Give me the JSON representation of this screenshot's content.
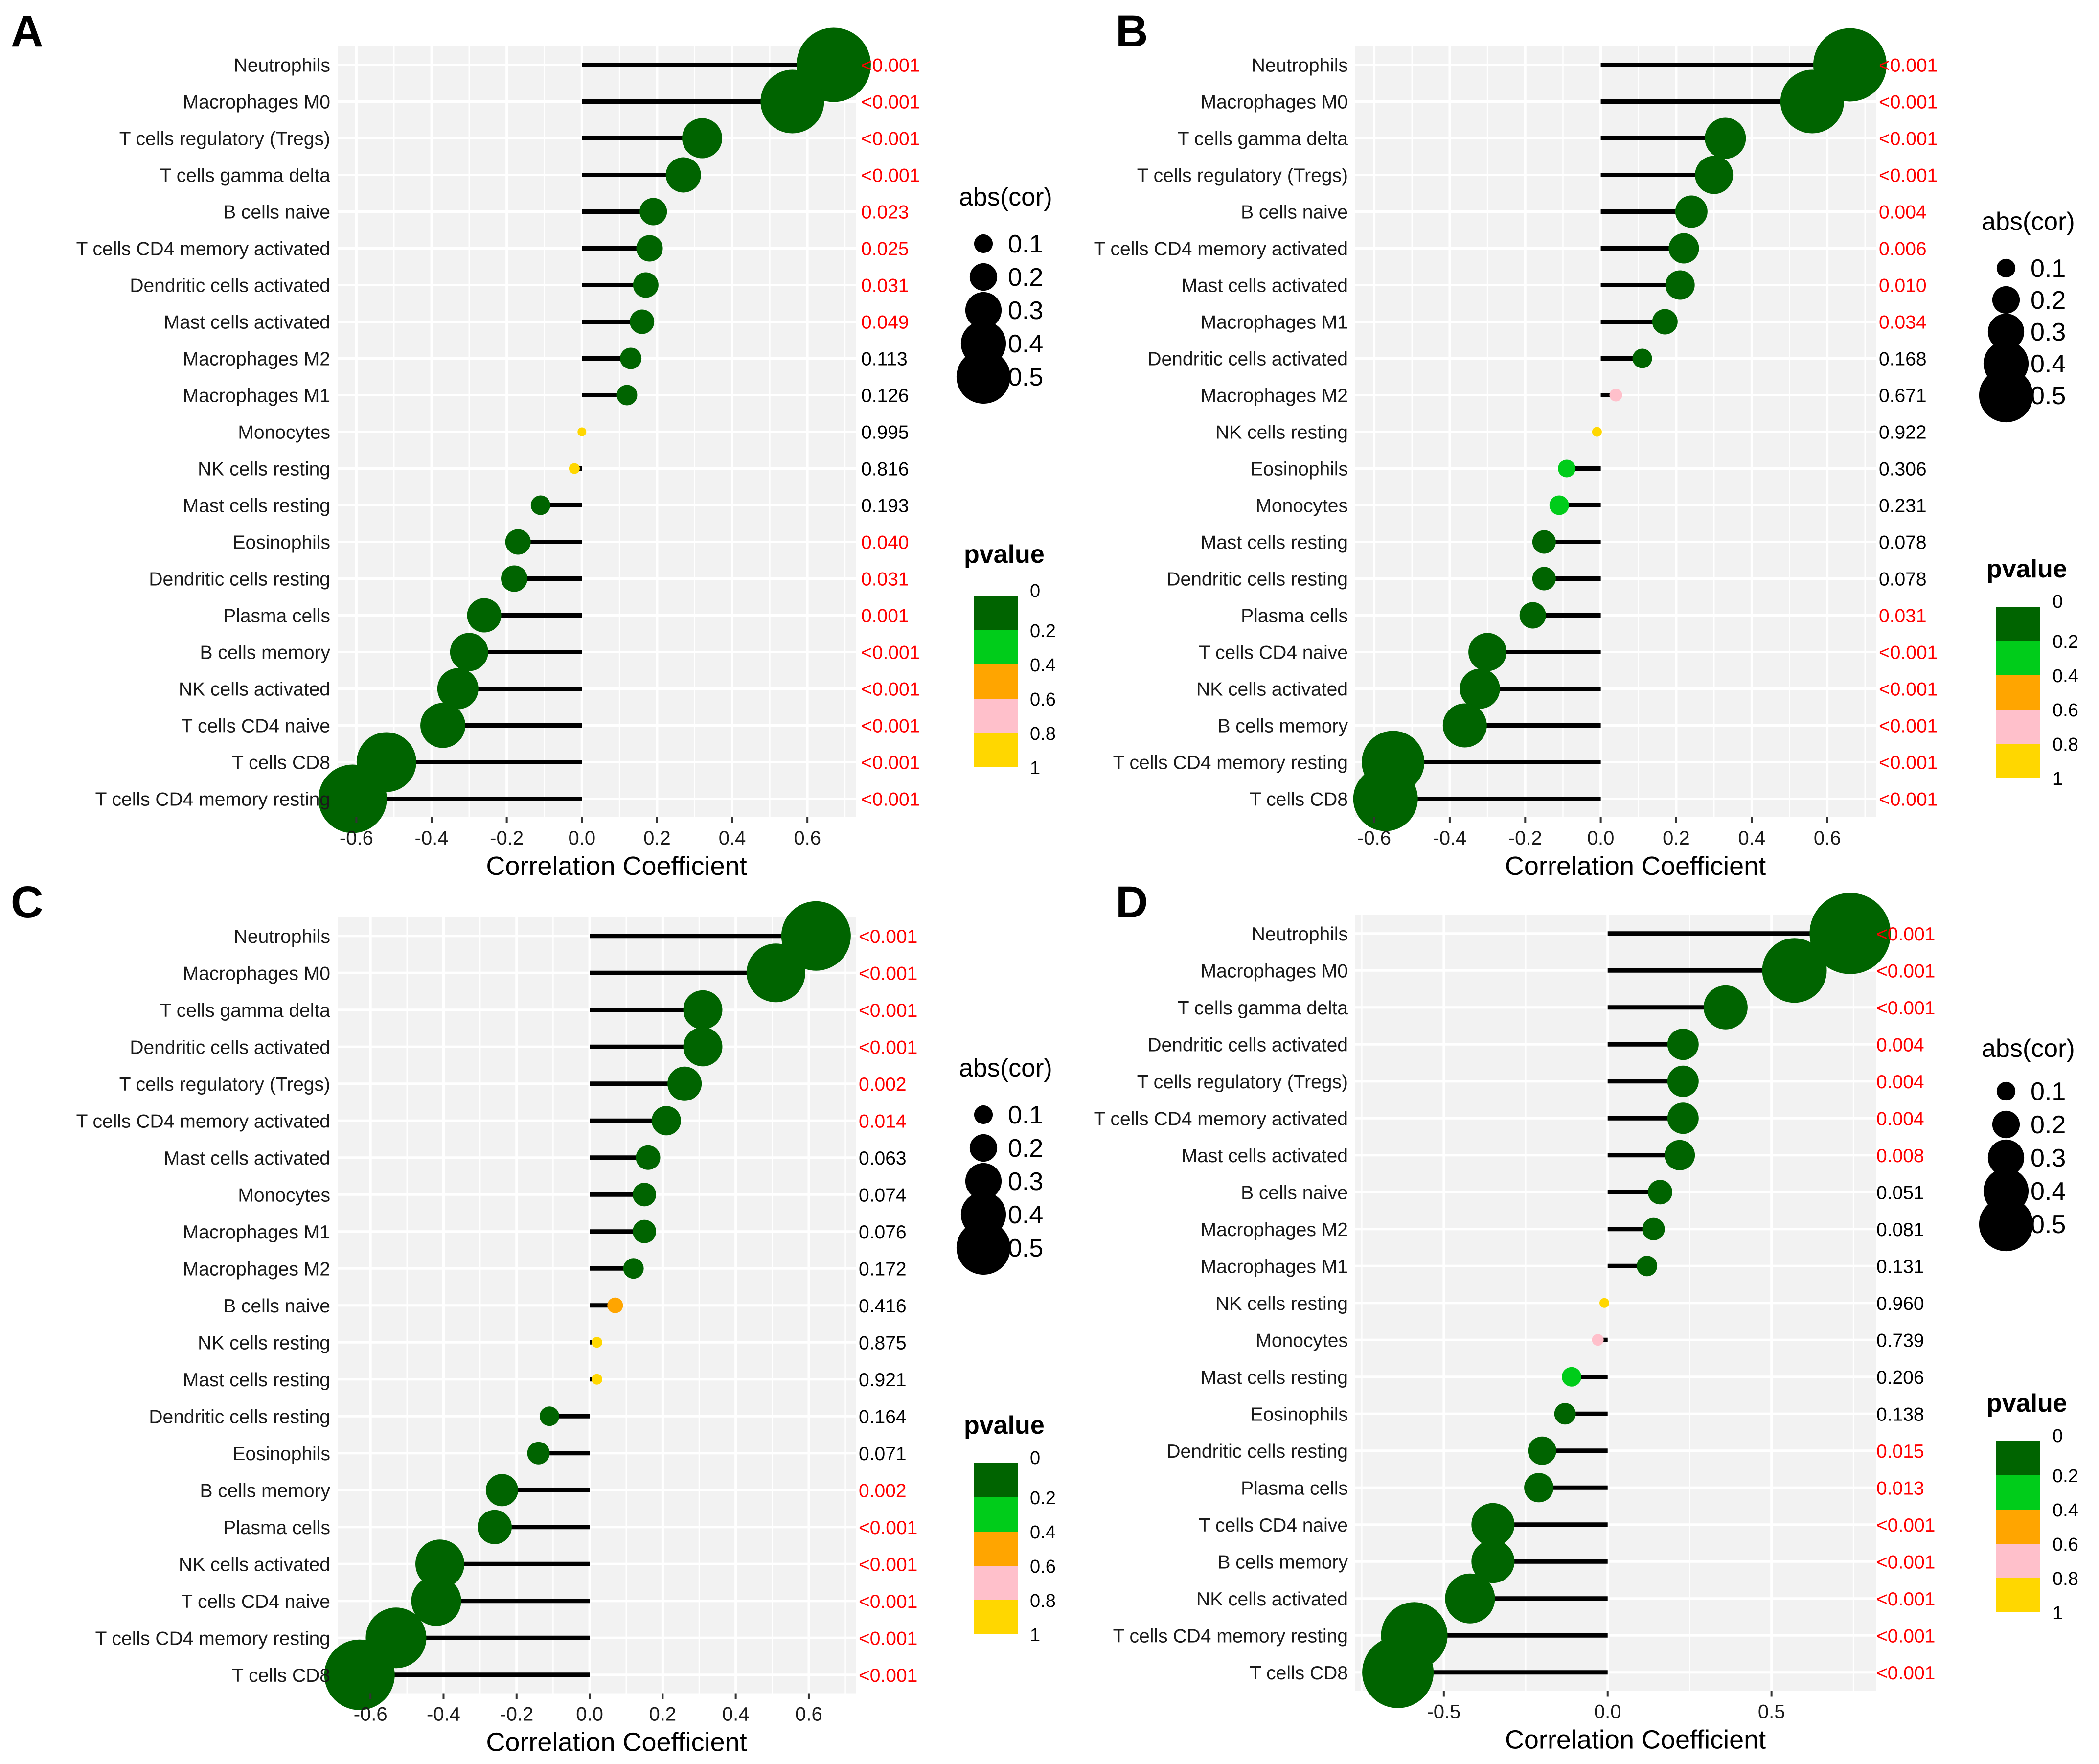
{
  "figure": {
    "title": ""
  },
  "colors": {
    "p_0": "#006400",
    "p_0_2": "#00CC1A",
    "p_0_4": "#FFA500",
    "p_0_6": "#FFC0CB",
    "p_0_8": "#FFD700",
    "sig_text": "#FF0000",
    "nonsig_text": "#000000",
    "panel_bg": "#F2F2F2",
    "grid": "#FFFFFF",
    "stem": "#000000"
  },
  "chart_data": [
    {
      "panel": "A",
      "type": "lollipop",
      "xlabel": "Correlation Coefficient",
      "ylabel": "",
      "xlim": [
        -0.65,
        0.73
      ],
      "xticks": [
        -0.6,
        -0.4,
        -0.2,
        0.0,
        0.2,
        0.4,
        0.6
      ],
      "xtick_labels": [
        "-0.6",
        "-0.4",
        "-0.2",
        "0.0",
        "0.2",
        "0.4",
        "0.6"
      ],
      "size_legend": {
        "title": "abs(cor)",
        "values": [
          "0.1",
          "0.2",
          "0.3",
          "0.4",
          "0.5"
        ]
      },
      "color_legend": {
        "title": "pvalue",
        "labels": [
          "0",
          "0.2",
          "0.4",
          "0.6",
          "0.8",
          "1"
        ]
      },
      "rows": [
        {
          "label": "Neutrophils",
          "cor": 0.67,
          "pval": 0.0005,
          "ptext": "<0.001"
        },
        {
          "label": "Macrophages M0",
          "cor": 0.56,
          "pval": 0.0005,
          "ptext": "<0.001"
        },
        {
          "label": "T cells regulatory (Tregs)",
          "cor": 0.32,
          "pval": 0.0005,
          "ptext": "<0.001"
        },
        {
          "label": "T cells gamma delta",
          "cor": 0.27,
          "pval": 0.0005,
          "ptext": "<0.001"
        },
        {
          "label": "B cells naive",
          "cor": 0.19,
          "pval": 0.023,
          "ptext": "0.023"
        },
        {
          "label": "T cells CD4 memory activated",
          "cor": 0.18,
          "pval": 0.025,
          "ptext": "0.025"
        },
        {
          "label": "Dendritic cells activated",
          "cor": 0.17,
          "pval": 0.031,
          "ptext": "0.031"
        },
        {
          "label": "Mast cells activated",
          "cor": 0.16,
          "pval": 0.049,
          "ptext": "0.049"
        },
        {
          "label": "Macrophages M2",
          "cor": 0.13,
          "pval": 0.113,
          "ptext": "0.113"
        },
        {
          "label": "Macrophages M1",
          "cor": 0.12,
          "pval": 0.126,
          "ptext": "0.126"
        },
        {
          "label": "Monocytes",
          "cor": 0.0,
          "pval": 0.995,
          "ptext": "0.995"
        },
        {
          "label": "NK cells resting",
          "cor": -0.02,
          "pval": 0.816,
          "ptext": "0.816"
        },
        {
          "label": "Mast cells resting",
          "cor": -0.11,
          "pval": 0.193,
          "ptext": "0.193"
        },
        {
          "label": "Eosinophils",
          "cor": -0.17,
          "pval": 0.04,
          "ptext": "0.040"
        },
        {
          "label": "Dendritic cells resting",
          "cor": -0.18,
          "pval": 0.031,
          "ptext": "0.031"
        },
        {
          "label": "Plasma cells",
          "cor": -0.26,
          "pval": 0.001,
          "ptext": "0.001"
        },
        {
          "label": "B cells memory",
          "cor": -0.3,
          "pval": 0.0005,
          "ptext": "<0.001"
        },
        {
          "label": "NK cells activated",
          "cor": -0.33,
          "pval": 0.0005,
          "ptext": "<0.001"
        },
        {
          "label": "T cells CD4 naive",
          "cor": -0.37,
          "pval": 0.0005,
          "ptext": "<0.001"
        },
        {
          "label": "T cells CD8",
          "cor": -0.52,
          "pval": 0.0005,
          "ptext": "<0.001"
        },
        {
          "label": "T cells CD4 memory resting",
          "cor": -0.61,
          "pval": 0.0005,
          "ptext": "<0.001"
        }
      ]
    },
    {
      "panel": "B",
      "type": "lollipop",
      "xlabel": "Correlation Coefficient",
      "ylabel": "",
      "xlim": [
        -0.65,
        0.73
      ],
      "xticks": [
        -0.6,
        -0.4,
        -0.2,
        0.0,
        0.2,
        0.4,
        0.6
      ],
      "xtick_labels": [
        "-0.6",
        "-0.4",
        "-0.2",
        "0.0",
        "0.2",
        "0.4",
        "0.6"
      ],
      "size_legend": {
        "title": "abs(cor)",
        "values": [
          "0.1",
          "0.2",
          "0.3",
          "0.4",
          "0.5"
        ]
      },
      "color_legend": {
        "title": "pvalue",
        "labels": [
          "0",
          "0.2",
          "0.4",
          "0.6",
          "0.8",
          "1"
        ]
      },
      "rows": [
        {
          "label": "Neutrophils",
          "cor": 0.66,
          "pval": 0.0005,
          "ptext": "<0.001"
        },
        {
          "label": "Macrophages M0",
          "cor": 0.56,
          "pval": 0.0005,
          "ptext": "<0.001"
        },
        {
          "label": "T cells gamma delta",
          "cor": 0.33,
          "pval": 0.0005,
          "ptext": "<0.001"
        },
        {
          "label": "T cells regulatory (Tregs)",
          "cor": 0.3,
          "pval": 0.0005,
          "ptext": "<0.001"
        },
        {
          "label": "B cells naive",
          "cor": 0.24,
          "pval": 0.004,
          "ptext": "0.004"
        },
        {
          "label": "T cells CD4 memory activated",
          "cor": 0.22,
          "pval": 0.006,
          "ptext": "0.006"
        },
        {
          "label": "Mast cells activated",
          "cor": 0.21,
          "pval": 0.01,
          "ptext": "0.010"
        },
        {
          "label": "Macrophages M1",
          "cor": 0.17,
          "pval": 0.034,
          "ptext": "0.034"
        },
        {
          "label": "Dendritic cells activated",
          "cor": 0.11,
          "pval": 0.168,
          "ptext": "0.168"
        },
        {
          "label": "Macrophages M2",
          "cor": 0.04,
          "pval": 0.671,
          "ptext": "0.671"
        },
        {
          "label": "NK cells resting",
          "cor": -0.01,
          "pval": 0.922,
          "ptext": "0.922"
        },
        {
          "label": "Eosinophils",
          "cor": -0.09,
          "pval": 0.306,
          "ptext": "0.306"
        },
        {
          "label": "Monocytes",
          "cor": -0.11,
          "pval": 0.231,
          "ptext": "0.231"
        },
        {
          "label": "Mast cells resting",
          "cor": -0.15,
          "pval": 0.078,
          "ptext": "0.078"
        },
        {
          "label": "Dendritic cells resting",
          "cor": -0.15,
          "pval": 0.078,
          "ptext": "0.078"
        },
        {
          "label": "Plasma cells",
          "cor": -0.18,
          "pval": 0.031,
          "ptext": "0.031"
        },
        {
          "label": "T cells CD4 naive",
          "cor": -0.3,
          "pval": 0.0005,
          "ptext": "<0.001"
        },
        {
          "label": "NK cells activated",
          "cor": -0.32,
          "pval": 0.0005,
          "ptext": "<0.001"
        },
        {
          "label": "B cells memory",
          "cor": -0.36,
          "pval": 0.0005,
          "ptext": "<0.001"
        },
        {
          "label": "T cells CD4 memory resting",
          "cor": -0.55,
          "pval": 0.0005,
          "ptext": "<0.001"
        },
        {
          "label": "T cells CD8",
          "cor": -0.57,
          "pval": 0.0005,
          "ptext": "<0.001"
        }
      ]
    },
    {
      "panel": "C",
      "type": "lollipop",
      "xlabel": "Correlation Coefficient",
      "ylabel": "",
      "xlim": [
        -0.69,
        0.73
      ],
      "xticks": [
        -0.6,
        -0.4,
        -0.2,
        0.0,
        0.2,
        0.4,
        0.6
      ],
      "xtick_labels": [
        "-0.6",
        "-0.4",
        "-0.2",
        "0.0",
        "0.2",
        "0.4",
        "0.6"
      ],
      "size_legend": {
        "title": "abs(cor)",
        "values": [
          "0.1",
          "0.2",
          "0.3",
          "0.4",
          "0.5"
        ]
      },
      "color_legend": {
        "title": "pvalue",
        "labels": [
          "0",
          "0.2",
          "0.4",
          "0.6",
          "0.8",
          "1"
        ]
      },
      "rows": [
        {
          "label": "Neutrophils",
          "cor": 0.62,
          "pval": 0.0005,
          "ptext": "<0.001"
        },
        {
          "label": "Macrophages M0",
          "cor": 0.51,
          "pval": 0.0005,
          "ptext": "<0.001"
        },
        {
          "label": "T cells gamma delta",
          "cor": 0.31,
          "pval": 0.0005,
          "ptext": "<0.001"
        },
        {
          "label": "Dendritic cells activated",
          "cor": 0.31,
          "pval": 0.0005,
          "ptext": "<0.001"
        },
        {
          "label": "T cells regulatory (Tregs)",
          "cor": 0.26,
          "pval": 0.002,
          "ptext": "0.002"
        },
        {
          "label": "T cells CD4 memory activated",
          "cor": 0.21,
          "pval": 0.014,
          "ptext": "0.014"
        },
        {
          "label": "Mast cells activated",
          "cor": 0.16,
          "pval": 0.063,
          "ptext": "0.063"
        },
        {
          "label": "Monocytes",
          "cor": 0.15,
          "pval": 0.074,
          "ptext": "0.074"
        },
        {
          "label": "Macrophages M1",
          "cor": 0.15,
          "pval": 0.076,
          "ptext": "0.076"
        },
        {
          "label": "Macrophages M2",
          "cor": 0.12,
          "pval": 0.172,
          "ptext": "0.172"
        },
        {
          "label": "B cells naive",
          "cor": 0.07,
          "pval": 0.416,
          "ptext": "0.416"
        },
        {
          "label": "NK cells resting",
          "cor": 0.02,
          "pval": 0.875,
          "ptext": "0.875"
        },
        {
          "label": "Mast cells resting",
          "cor": 0.02,
          "pval": 0.921,
          "ptext": "0.921"
        },
        {
          "label": "Dendritic cells resting",
          "cor": -0.11,
          "pval": 0.164,
          "ptext": "0.164"
        },
        {
          "label": "Eosinophils",
          "cor": -0.14,
          "pval": 0.071,
          "ptext": "0.071"
        },
        {
          "label": "B cells memory",
          "cor": -0.24,
          "pval": 0.002,
          "ptext": "0.002"
        },
        {
          "label": "Plasma cells",
          "cor": -0.26,
          "pval": 0.0005,
          "ptext": "<0.001"
        },
        {
          "label": "NK cells activated",
          "cor": -0.41,
          "pval": 0.0005,
          "ptext": "<0.001"
        },
        {
          "label": "T cells CD4 naive",
          "cor": -0.42,
          "pval": 0.0005,
          "ptext": "<0.001"
        },
        {
          "label": "T cells CD4 memory resting",
          "cor": -0.53,
          "pval": 0.0005,
          "ptext": "<0.001"
        },
        {
          "label": "T cells CD8",
          "cor": -0.63,
          "pval": 0.0005,
          "ptext": "<0.001"
        }
      ]
    },
    {
      "panel": "D",
      "type": "lollipop",
      "xlabel": "Correlation Coefficient",
      "ylabel": "",
      "xlim": [
        -0.77,
        0.82
      ],
      "xticks": [
        -0.5,
        0.0,
        0.5
      ],
      "xtick_labels": [
        "-0.5",
        "0.0",
        "0.5"
      ],
      "size_legend": {
        "title": "abs(cor)",
        "values": [
          "0.1",
          "0.2",
          "0.3",
          "0.4",
          "0.5"
        ]
      },
      "color_legend": {
        "title": "pvalue",
        "labels": [
          "0",
          "0.2",
          "0.4",
          "0.6",
          "0.8",
          "1"
        ]
      },
      "rows": [
        {
          "label": "Neutrophils",
          "cor": 0.74,
          "pval": 0.0005,
          "ptext": "<0.001"
        },
        {
          "label": "Macrophages M0",
          "cor": 0.57,
          "pval": 0.0005,
          "ptext": "<0.001"
        },
        {
          "label": "T cells gamma delta",
          "cor": 0.36,
          "pval": 0.0005,
          "ptext": "<0.001"
        },
        {
          "label": "Dendritic cells activated",
          "cor": 0.23,
          "pval": 0.004,
          "ptext": "0.004"
        },
        {
          "label": "T cells regulatory (Tregs)",
          "cor": 0.23,
          "pval": 0.004,
          "ptext": "0.004"
        },
        {
          "label": "T cells CD4 memory activated",
          "cor": 0.23,
          "pval": 0.004,
          "ptext": "0.004"
        },
        {
          "label": "Mast cells activated",
          "cor": 0.22,
          "pval": 0.008,
          "ptext": "0.008"
        },
        {
          "label": "B cells naive",
          "cor": 0.16,
          "pval": 0.051,
          "ptext": "0.051"
        },
        {
          "label": "Macrophages M2",
          "cor": 0.14,
          "pval": 0.081,
          "ptext": "0.081"
        },
        {
          "label": "Macrophages M1",
          "cor": 0.12,
          "pval": 0.131,
          "ptext": "0.131"
        },
        {
          "label": "NK cells resting",
          "cor": -0.01,
          "pval": 0.96,
          "ptext": "0.960"
        },
        {
          "label": "Monocytes",
          "cor": -0.03,
          "pval": 0.739,
          "ptext": "0.739"
        },
        {
          "label": "Mast cells resting",
          "cor": -0.11,
          "pval": 0.206,
          "ptext": "0.206"
        },
        {
          "label": "Eosinophils",
          "cor": -0.13,
          "pval": 0.138,
          "ptext": "0.138"
        },
        {
          "label": "Dendritic cells resting",
          "cor": -0.2,
          "pval": 0.015,
          "ptext": "0.015"
        },
        {
          "label": "Plasma cells",
          "cor": -0.21,
          "pval": 0.013,
          "ptext": "0.013"
        },
        {
          "label": "T cells CD4 naive",
          "cor": -0.35,
          "pval": 0.0005,
          "ptext": "<0.001"
        },
        {
          "label": "B cells memory",
          "cor": -0.35,
          "pval": 0.0005,
          "ptext": "<0.001"
        },
        {
          "label": "NK cells activated",
          "cor": -0.42,
          "pval": 0.0005,
          "ptext": "<0.001"
        },
        {
          "label": "T cells CD4 memory resting",
          "cor": -0.59,
          "pval": 0.0005,
          "ptext": "<0.001"
        },
        {
          "label": "T cells CD8",
          "cor": -0.64,
          "pval": 0.0005,
          "ptext": "<0.001"
        }
      ]
    }
  ]
}
